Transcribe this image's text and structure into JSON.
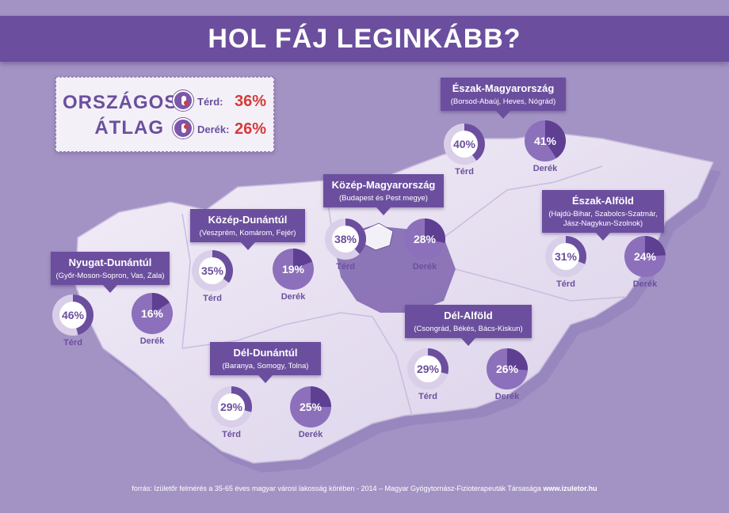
{
  "title": "HOL FÁJ LEGINKÁBB?",
  "colors": {
    "background": "#a393c4",
    "banner": "#6b4f9e",
    "map_light": "#e9e2f2",
    "map_dark": "#7d63ad",
    "accent_red": "#d63a3a",
    "pie_terd": "#6b4f9e",
    "pie_derek": "#7a57a8"
  },
  "national_average": {
    "label_line1": "ORSZÁGOS",
    "label_line2": "ÁTLAG",
    "terd": {
      "name": "Térd:",
      "value": "36%",
      "icon": "knee-icon"
    },
    "derek": {
      "name": "Derék:",
      "value": "26%",
      "icon": "back-icon"
    }
  },
  "regions": [
    {
      "id": "nyugat-dunantul",
      "name": "Nyugat-Dunántúl",
      "counties": "(Győr-Moson-Sopron, Vas, Zala)",
      "terd": {
        "label": "46%",
        "value": 46
      },
      "derek": {
        "label": "16%",
        "value": 16
      }
    },
    {
      "id": "kozep-dunantul",
      "name": "Közép-Dunántúl",
      "counties": "(Veszprém, Komárom, Fejér)",
      "terd": {
        "label": "35%",
        "value": 35
      },
      "derek": {
        "label": "19%",
        "value": 19
      }
    },
    {
      "id": "kozep-magyarorszag",
      "name": "Közép-Magyarország",
      "counties": "(Budapest és Pest megye)",
      "terd": {
        "label": "38%",
        "value": 38
      },
      "derek": {
        "label": "28%",
        "value": 28
      }
    },
    {
      "id": "eszak-magyarorszag",
      "name": "Észak-Magyarország",
      "counties": "(Borsod-Abaúj, Heves, Nógrád)",
      "terd": {
        "label": "40%",
        "value": 40
      },
      "derek": {
        "label": "41%",
        "value": 41
      }
    },
    {
      "id": "eszak-alfold",
      "name": "Észak-Alföld",
      "counties": "(Hajdú-Bihar, Szabolcs-Szatmár,",
      "counties2": "Jász-Nagykun-Szolnok)",
      "terd": {
        "label": "31%",
        "value": 31
      },
      "derek": {
        "label": "24%",
        "value": 24
      }
    },
    {
      "id": "del-alfold",
      "name": "Dél-Alföld",
      "counties": "(Csongrád, Békés, Bács-Kiskun)",
      "terd": {
        "label": "29%",
        "value": 29
      },
      "derek": {
        "label": "26%",
        "value": 26
      }
    },
    {
      "id": "del-dunantul",
      "name": "Dél-Dunántúl",
      "counties": "(Baranya, Somogy, Tolna)",
      "terd": {
        "label": "29%",
        "value": 29
      },
      "derek": {
        "label": "25%",
        "value": 25
      }
    }
  ],
  "labels": {
    "terd": "Térd",
    "derek": "Derék"
  },
  "footer": {
    "text": "forrás: Izületőr felmérés a 35-65 éves magyar városi lakosság körében - 2014 – Magyar Gyógytornász-Fizioterapeuták Társasága",
    "url": "www.izuletor.hu"
  }
}
